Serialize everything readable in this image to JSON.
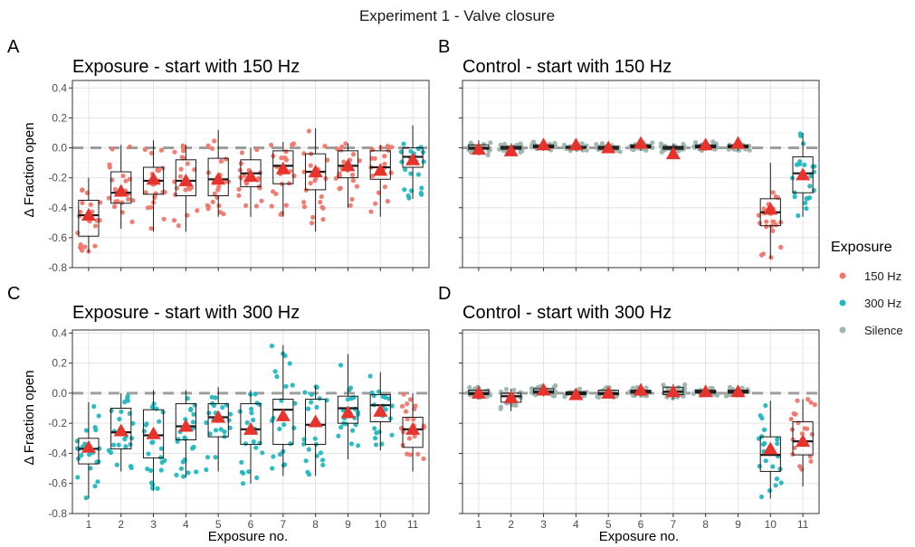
{
  "figure": {
    "title": "Experiment 1 - Valve closure",
    "legend": {
      "title": "Exposure",
      "placement": "right",
      "items": [
        {
          "label": "150 Hz",
          "color": "#f0776c"
        },
        {
          "label": "300 Hz",
          "color": "#22b8bf"
        },
        {
          "label": "Silence",
          "color": "#9db5ae"
        }
      ]
    },
    "reference_line": {
      "y": 0,
      "color": "#9e9e9e",
      "style": "dashed"
    },
    "mean_marker": {
      "shape": "triangle",
      "color": "#e8322c"
    }
  },
  "chart_data": [
    {
      "type": "box",
      "panel_letter": "A",
      "title": "Exposure - start with 150 Hz",
      "xlabel": "",
      "ylabel": "Δ Fraction open",
      "categories": [
        "1",
        "2",
        "3",
        "4",
        "5",
        "6",
        "7",
        "8",
        "9",
        "10",
        "11"
      ],
      "ylim": [
        -0.8,
        0.45
      ],
      "yticks": [
        -0.8,
        -0.6,
        -0.4,
        -0.2,
        0.0,
        0.2,
        0.4
      ],
      "grid": true,
      "groups": [
        {
          "x": "1",
          "exposure": "150 Hz",
          "q1": -0.59,
          "median": -0.45,
          "q3": -0.35,
          "whisker_low": -0.7,
          "whisker_high": -0.2,
          "mean": -0.45
        },
        {
          "x": "2",
          "exposure": "150 Hz",
          "q1": -0.37,
          "median": -0.3,
          "q3": -0.16,
          "whisker_low": -0.54,
          "whisker_high": 0.02,
          "mean": -0.29
        },
        {
          "x": "3",
          "exposure": "150 Hz",
          "q1": -0.31,
          "median": -0.22,
          "q3": -0.13,
          "whisker_low": -0.56,
          "whisker_high": 0.05,
          "mean": -0.21
        },
        {
          "x": "4",
          "exposure": "150 Hz",
          "q1": -0.32,
          "median": -0.22,
          "q3": -0.08,
          "whisker_low": -0.56,
          "whisker_high": 0.02,
          "mean": -0.22
        },
        {
          "x": "5",
          "exposure": "150 Hz",
          "q1": -0.32,
          "median": -0.21,
          "q3": -0.07,
          "whisker_low": -0.46,
          "whisker_high": 0.12,
          "mean": -0.21
        },
        {
          "x": "6",
          "exposure": "150 Hz",
          "q1": -0.26,
          "median": -0.17,
          "q3": -0.08,
          "whisker_low": -0.46,
          "whisker_high": 0.0,
          "mean": -0.19
        },
        {
          "x": "7",
          "exposure": "150 Hz",
          "q1": -0.24,
          "median": -0.12,
          "q3": -0.02,
          "whisker_low": -0.46,
          "whisker_high": 0.04,
          "mean": -0.14
        },
        {
          "x": "8",
          "exposure": "150 Hz",
          "q1": -0.28,
          "median": -0.16,
          "q3": -0.04,
          "whisker_low": -0.56,
          "whisker_high": 0.13,
          "mean": -0.16
        },
        {
          "x": "9",
          "exposure": "150 Hz",
          "q1": -0.2,
          "median": -0.12,
          "q3": -0.02,
          "whisker_low": -0.4,
          "whisker_high": 0.03,
          "mean": -0.12
        },
        {
          "x": "10",
          "exposure": "150 Hz",
          "q1": -0.21,
          "median": -0.13,
          "q3": -0.02,
          "whisker_low": -0.46,
          "whisker_high": 0.02,
          "mean": -0.15
        },
        {
          "x": "11",
          "exposure": "300 Hz",
          "q1": -0.13,
          "median": -0.06,
          "q3": 0.0,
          "whisker_low": -0.34,
          "whisker_high": 0.15,
          "mean": -0.08
        }
      ]
    },
    {
      "type": "box",
      "panel_letter": "B",
      "title": "Control - start with 150 Hz",
      "xlabel": "",
      "ylabel": "",
      "categories": [
        "1",
        "2",
        "3",
        "4",
        "5",
        "6",
        "7",
        "8",
        "9",
        "10",
        "11"
      ],
      "ylim": [
        -0.8,
        0.45
      ],
      "yticks": [
        -0.8,
        -0.6,
        -0.4,
        -0.2,
        0.0,
        0.2,
        0.4
      ],
      "grid": true,
      "groups": [
        {
          "x": "1",
          "exposure": "Silence",
          "q1": -0.01,
          "median": 0.0,
          "q3": 0.02,
          "whisker_low": -0.05,
          "whisker_high": 0.05,
          "mean": -0.01
        },
        {
          "x": "2",
          "exposure": "Silence",
          "q1": -0.01,
          "median": 0.0,
          "q3": 0.01,
          "whisker_low": -0.03,
          "whisker_high": 0.03,
          "mean": -0.02
        },
        {
          "x": "3",
          "exposure": "Silence",
          "q1": 0.0,
          "median": 0.01,
          "q3": 0.02,
          "whisker_low": -0.02,
          "whisker_high": 0.04,
          "mean": 0.02
        },
        {
          "x": "4",
          "exposure": "Silence",
          "q1": 0.0,
          "median": 0.0,
          "q3": 0.01,
          "whisker_low": -0.02,
          "whisker_high": 0.03,
          "mean": 0.02
        },
        {
          "x": "5",
          "exposure": "Silence",
          "q1": -0.01,
          "median": 0.0,
          "q3": 0.01,
          "whisker_low": -0.03,
          "whisker_high": 0.03,
          "mean": 0.0
        },
        {
          "x": "6",
          "exposure": "Silence",
          "q1": 0.0,
          "median": 0.01,
          "q3": 0.02,
          "whisker_low": -0.02,
          "whisker_high": 0.04,
          "mean": 0.03
        },
        {
          "x": "7",
          "exposure": "Silence",
          "q1": -0.01,
          "median": 0.0,
          "q3": 0.01,
          "whisker_low": -0.03,
          "whisker_high": 0.03,
          "mean": -0.04
        },
        {
          "x": "8",
          "exposure": "Silence",
          "q1": 0.0,
          "median": 0.01,
          "q3": 0.02,
          "whisker_low": -0.02,
          "whisker_high": 0.04,
          "mean": 0.02
        },
        {
          "x": "9",
          "exposure": "Silence",
          "q1": 0.0,
          "median": 0.01,
          "q3": 0.02,
          "whisker_low": -0.02,
          "whisker_high": 0.04,
          "mean": 0.03
        },
        {
          "x": "10",
          "exposure": "150 Hz",
          "q1": -0.52,
          "median": -0.43,
          "q3": -0.34,
          "whisker_low": -0.74,
          "whisker_high": -0.1,
          "mean": -0.41
        },
        {
          "x": "11",
          "exposure": "300 Hz",
          "q1": -0.3,
          "median": -0.17,
          "q3": -0.06,
          "whisker_low": -0.46,
          "whisker_high": 0.1,
          "mean": -0.18
        }
      ]
    },
    {
      "type": "box",
      "panel_letter": "C",
      "title": "Exposure - start with 300 Hz",
      "xlabel": "Exposure no.",
      "ylabel": "Δ Fraction open",
      "categories": [
        "1",
        "2",
        "3",
        "4",
        "5",
        "6",
        "7",
        "8",
        "9",
        "10",
        "11"
      ],
      "ylim": [
        -0.8,
        0.42
      ],
      "yticks": [
        -0.8,
        -0.6,
        -0.4,
        -0.2,
        0.0,
        0.2,
        0.4
      ],
      "grid": true,
      "groups": [
        {
          "x": "1",
          "exposure": "300 Hz",
          "q1": -0.47,
          "median": -0.37,
          "q3": -0.3,
          "whisker_low": -0.7,
          "whisker_high": -0.06,
          "mean": -0.36
        },
        {
          "x": "2",
          "exposure": "300 Hz",
          "q1": -0.37,
          "median": -0.26,
          "q3": -0.1,
          "whisker_low": -0.52,
          "whisker_high": 0.0,
          "mean": -0.25
        },
        {
          "x": "3",
          "exposure": "300 Hz",
          "q1": -0.43,
          "median": -0.28,
          "q3": -0.11,
          "whisker_low": -0.65,
          "whisker_high": 0.02,
          "mean": -0.27
        },
        {
          "x": "4",
          "exposure": "300 Hz",
          "q1": -0.31,
          "median": -0.22,
          "q3": -0.07,
          "whisker_low": -0.56,
          "whisker_high": 0.02,
          "mean": -0.22
        },
        {
          "x": "5",
          "exposure": "300 Hz",
          "q1": -0.29,
          "median": -0.16,
          "q3": -0.07,
          "whisker_low": -0.52,
          "whisker_high": 0.04,
          "mean": -0.16
        },
        {
          "x": "6",
          "exposure": "300 Hz",
          "q1": -0.34,
          "median": -0.24,
          "q3": -0.07,
          "whisker_low": -0.6,
          "whisker_high": 0.02,
          "mean": -0.24
        },
        {
          "x": "7",
          "exposure": "300 Hz",
          "q1": -0.34,
          "median": -0.11,
          "q3": -0.04,
          "whisker_low": -0.55,
          "whisker_high": 0.32,
          "mean": -0.15
        },
        {
          "x": "8",
          "exposure": "300 Hz",
          "q1": -0.34,
          "median": -0.21,
          "q3": -0.04,
          "whisker_low": -0.55,
          "whisker_high": 0.05,
          "mean": -0.19
        },
        {
          "x": "9",
          "exposure": "300 Hz",
          "q1": -0.2,
          "median": -0.1,
          "q3": -0.02,
          "whisker_low": -0.44,
          "whisker_high": 0.26,
          "mean": -0.13
        },
        {
          "x": "10",
          "exposure": "300 Hz",
          "q1": -0.19,
          "median": -0.08,
          "q3": -0.01,
          "whisker_low": -0.38,
          "whisker_high": 0.14,
          "mean": -0.12
        },
        {
          "x": "11",
          "exposure": "150 Hz",
          "q1": -0.36,
          "median": -0.24,
          "q3": -0.16,
          "whisker_low": -0.52,
          "whisker_high": 0.0,
          "mean": -0.24
        }
      ]
    },
    {
      "type": "box",
      "panel_letter": "D",
      "title": "Control - start with 300 Hz",
      "xlabel": "Exposure no.",
      "ylabel": "",
      "categories": [
        "1",
        "2",
        "3",
        "4",
        "5",
        "6",
        "7",
        "8",
        "9",
        "10",
        "11"
      ],
      "ylim": [
        -0.8,
        0.42
      ],
      "yticks": [
        -0.8,
        -0.6,
        -0.4,
        -0.2,
        0.0,
        0.2,
        0.4
      ],
      "grid": true,
      "groups": [
        {
          "x": "1",
          "exposure": "Silence",
          "q1": -0.01,
          "median": 0.0,
          "q3": 0.02,
          "whisker_low": -0.04,
          "whisker_high": 0.05,
          "mean": 0.0
        },
        {
          "x": "2",
          "exposure": "Silence",
          "q1": -0.06,
          "median": -0.02,
          "q3": 0.0,
          "whisker_low": -0.12,
          "whisker_high": 0.03,
          "mean": -0.03
        },
        {
          "x": "3",
          "exposure": "Silence",
          "q1": 0.0,
          "median": 0.01,
          "q3": 0.03,
          "whisker_low": -0.02,
          "whisker_high": 0.06,
          "mean": 0.02
        },
        {
          "x": "4",
          "exposure": "Silence",
          "q1": -0.01,
          "median": 0.0,
          "q3": 0.01,
          "whisker_low": -0.03,
          "whisker_high": 0.03,
          "mean": -0.01
        },
        {
          "x": "5",
          "exposure": "Silence",
          "q1": -0.01,
          "median": 0.0,
          "q3": 0.02,
          "whisker_low": -0.03,
          "whisker_high": 0.04,
          "mean": 0.0
        },
        {
          "x": "6",
          "exposure": "Silence",
          "q1": 0.0,
          "median": 0.01,
          "q3": 0.02,
          "whisker_low": -0.02,
          "whisker_high": 0.04,
          "mean": 0.02
        },
        {
          "x": "7",
          "exposure": "Silence",
          "q1": -0.01,
          "median": 0.01,
          "q3": 0.04,
          "whisker_low": -0.04,
          "whisker_high": 0.06,
          "mean": 0.01
        },
        {
          "x": "8",
          "exposure": "Silence",
          "q1": 0.0,
          "median": 0.01,
          "q3": 0.02,
          "whisker_low": -0.02,
          "whisker_high": 0.04,
          "mean": 0.01
        },
        {
          "x": "9",
          "exposure": "Silence",
          "q1": 0.0,
          "median": 0.01,
          "q3": 0.02,
          "whisker_low": -0.02,
          "whisker_high": 0.04,
          "mean": 0.01
        },
        {
          "x": "10",
          "exposure": "300 Hz",
          "q1": -0.52,
          "median": -0.41,
          "q3": -0.29,
          "whisker_low": -0.7,
          "whisker_high": -0.05,
          "mean": -0.37
        },
        {
          "x": "11",
          "exposure": "150 Hz",
          "q1": -0.41,
          "median": -0.32,
          "q3": -0.19,
          "whisker_low": -0.62,
          "whisker_high": -0.04,
          "mean": -0.32
        }
      ]
    }
  ]
}
